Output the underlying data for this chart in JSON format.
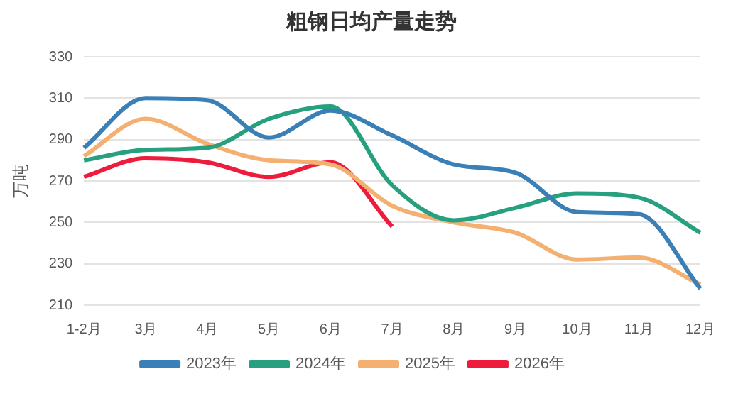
{
  "chart_data": {
    "type": "line",
    "title": "粗钢日均产量走势",
    "ylabel": "万吨",
    "categories": [
      "1-2月",
      "3月",
      "4月",
      "5月",
      "6月",
      "7月",
      "8月",
      "9月",
      "10月",
      "11月",
      "12月"
    ],
    "series": [
      {
        "name": "2023年",
        "color": "#3a7fb5",
        "values": [
          286,
          310,
          309,
          291,
          304,
          292,
          278,
          274,
          255,
          254,
          218
        ]
      },
      {
        "name": "2024年",
        "color": "#27a07f",
        "values": [
          280,
          285,
          286,
          300,
          306,
          268,
          251,
          257,
          264,
          262,
          245
        ]
      },
      {
        "name": "2025年",
        "color": "#f3b071",
        "values": [
          282,
          300,
          288,
          280,
          278,
          258,
          250,
          245,
          232,
          233,
          220
        ]
      },
      {
        "name": "2026年",
        "color": "#ee1c3c",
        "values": [
          272,
          281,
          279,
          272,
          279,
          248,
          null,
          null,
          null,
          null,
          null
        ]
      }
    ],
    "ylim": [
      210,
      330
    ],
    "yticks": [
      210,
      230,
      250,
      270,
      290,
      310,
      330
    ],
    "grid": "y",
    "legend": "bottom",
    "marker": "none",
    "line_style": "solid"
  }
}
